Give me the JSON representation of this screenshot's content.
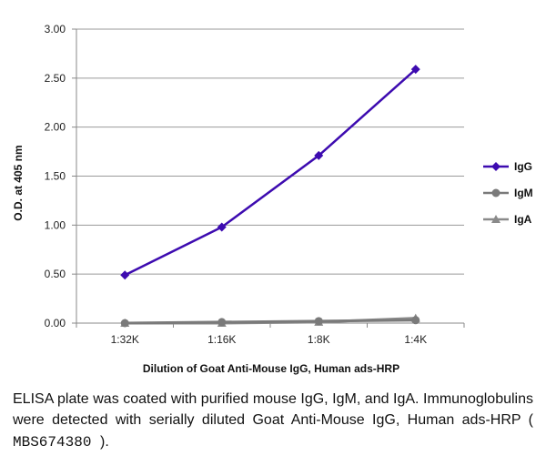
{
  "chart_data": {
    "type": "line",
    "categories": [
      "1:32K",
      "1:16K",
      "1:8K",
      "1:4K"
    ],
    "series": [
      {
        "name": "IgG",
        "values": [
          0.49,
          0.98,
          1.71,
          2.59
        ],
        "color": "#3d0bb0",
        "marker": "diamond"
      },
      {
        "name": "IgM",
        "values": [
          0.0,
          0.01,
          0.02,
          0.03
        ],
        "color": "#7a7a7a",
        "marker": "circle"
      },
      {
        "name": "IgA",
        "values": [
          0.0,
          0.0,
          0.01,
          0.05
        ],
        "color": "#8a8a8a",
        "marker": "triangle"
      }
    ],
    "yticks": [
      "0.00",
      "0.50",
      "1.00",
      "1.50",
      "2.00",
      "2.50",
      "3.00"
    ],
    "ylim": [
      0,
      3
    ],
    "ylabel": "O.D. at 405 nm",
    "xlabel": "Dilution of Goat Anti-Mouse IgG, Human ads-HRP",
    "grid": true,
    "legend": "right"
  },
  "caption": {
    "text": "ELISA plate was coated with purified mouse IgG, IgM, and IgA. Immunoglobulins were detected with serially diluted Goat Anti-Mouse IgG, Human ads-HRP (",
    "catalog": " MBS674380 ",
    "suffix": ")."
  }
}
